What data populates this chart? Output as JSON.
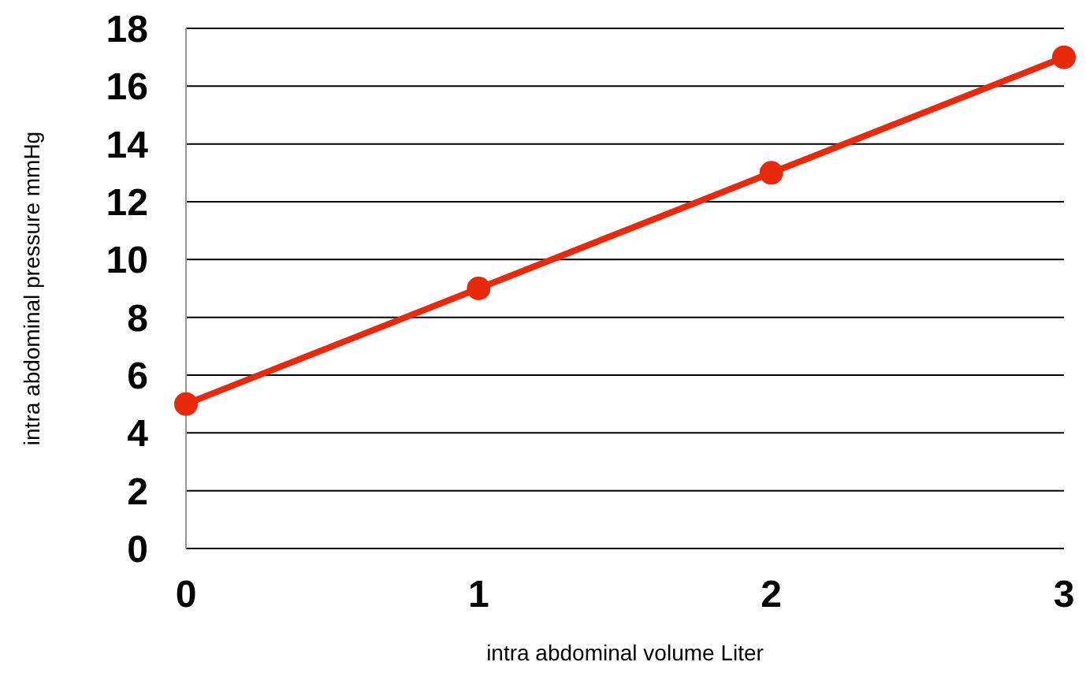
{
  "chart_data": {
    "type": "line",
    "xlabel": "intra abdominal volume Liter",
    "ylabel": "intra abdominal pressure mmHg",
    "x": [
      0,
      1,
      2,
      3
    ],
    "series": [
      {
        "color": "#e8290b",
        "values": [
          5,
          9,
          13,
          17
        ]
      }
    ],
    "xlim": [
      0,
      3
    ],
    "xticks": [
      0,
      1,
      2,
      3
    ],
    "ylim": [
      0,
      18
    ],
    "yticks": [
      0,
      2,
      4,
      6,
      8,
      10,
      12,
      14,
      16,
      18
    ],
    "grid": "y",
    "marker": "circle",
    "line_style": "solid"
  }
}
